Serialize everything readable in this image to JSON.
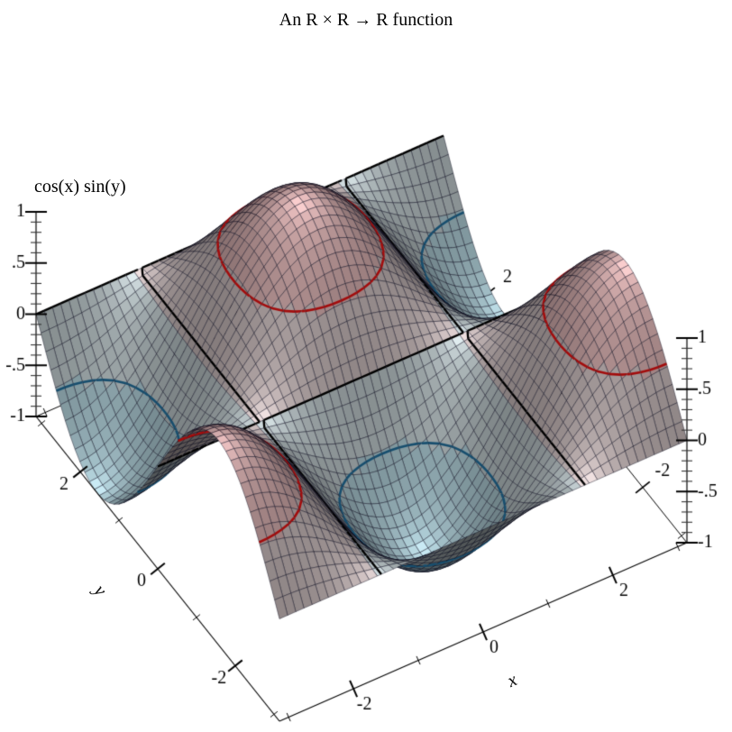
{
  "chart_data": {
    "type": "surface3d",
    "title": "An R × R → R function",
    "function": "cos(x) * sin(y)",
    "xlabel": "x",
    "ylabel": "y",
    "zlabel": "cos(x) sin(y)",
    "x_range": [
      -3.141592653589793,
      3.141592653589793
    ],
    "y_range": [
      -3.141592653589793,
      3.141592653589793
    ],
    "z_range": [
      -1,
      1
    ],
    "x_ticks": {
      "major": [
        {
          "v": -2,
          "label": "-2"
        },
        {
          "v": 0,
          "label": "0"
        },
        {
          "v": 2,
          "label": "2"
        }
      ],
      "minor": [
        -3,
        -1,
        1,
        3
      ]
    },
    "y_ticks": {
      "major": [
        {
          "v": 2,
          "label": "2"
        },
        {
          "v": 0,
          "label": "0"
        },
        {
          "v": -2,
          "label": "-2"
        }
      ],
      "minor": [
        3,
        1,
        -1,
        -3
      ]
    },
    "z_ticks": {
      "major": [
        {
          "v": 1,
          "label": "1"
        },
        {
          "v": 0.5,
          "label": ".5"
        },
        {
          "v": 0,
          "label": "0"
        },
        {
          "v": -0.5,
          "label": "-.5"
        },
        {
          "v": -1,
          "label": "-1"
        }
      ],
      "minor_step": 0.1
    },
    "contour_levels": [
      {
        "z": -0.5,
        "color": "#174e6e",
        "style": "solid"
      },
      {
        "z": 0,
        "color": "#000000",
        "style": "dashed"
      },
      {
        "z": 0.5,
        "color": "#a30c0c",
        "style": "solid"
      }
    ],
    "interval_fills": [
      {
        "range": [
          -1,
          -0.5
        ],
        "color": "#c9ecf6"
      },
      {
        "range": [
          -0.5,
          0
        ],
        "color": "#e1eef1"
      },
      {
        "range": [
          0,
          0.5
        ],
        "color": "#f1e1e1"
      },
      {
        "range": [
          0.5,
          1
        ],
        "color": "#fccece"
      }
    ],
    "mesh": {
      "cells": 50,
      "line_color": "rgba(0,0,20,0.55)"
    },
    "axis_color": "#000000",
    "background": "#ffffff",
    "legend": "none",
    "grid": "mesh-on-surface"
  }
}
